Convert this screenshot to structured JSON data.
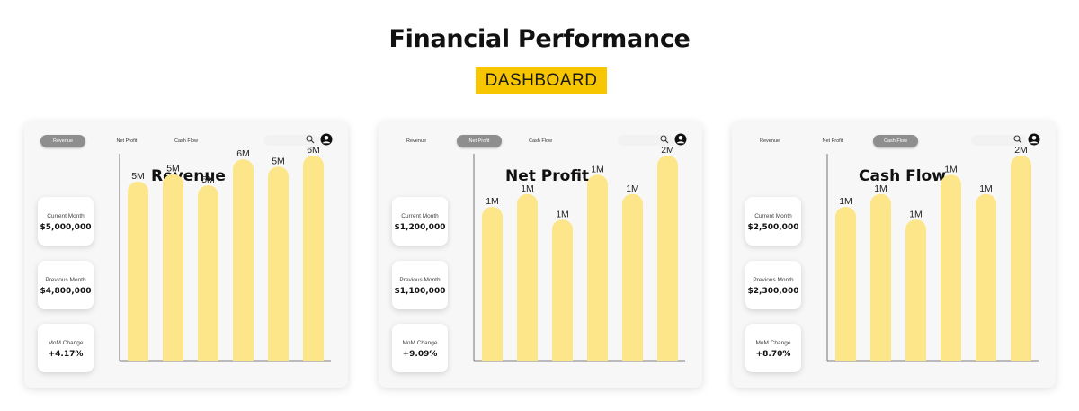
{
  "header": {
    "title": "Financial Performance",
    "subtitle": "DASHBOARD"
  },
  "colors": {
    "accent": "#f7c600",
    "bar": "#fde68a",
    "active_tab": "#8e8e8e"
  },
  "panels": [
    {
      "tabs": [
        "Revenue",
        "Net Profit",
        "Cash Flow"
      ],
      "active_tab": 0,
      "chart_title": "Revenue",
      "stats": [
        {
          "label": "Current Month",
          "value": "$5,000,000"
        },
        {
          "label": "Previous Month",
          "value": "$4,800,000"
        },
        {
          "label": "MoM Change",
          "value": "+4.17%"
        }
      ]
    },
    {
      "tabs": [
        "Revenue",
        "Net Profit",
        "Cash Flow"
      ],
      "active_tab": 1,
      "chart_title": "Net Profit",
      "stats": [
        {
          "label": "Current Month",
          "value": "$1,200,000"
        },
        {
          "label": "Previous Month",
          "value": "$1,100,000"
        },
        {
          "label": "MoM Change",
          "value": "+9.09%"
        }
      ]
    },
    {
      "tabs": [
        "Revenue",
        "Net Profit",
        "Cash Flow"
      ],
      "active_tab": 2,
      "chart_title": "Cash Flow",
      "stats": [
        {
          "label": "Current Month",
          "value": "$2,500,000"
        },
        {
          "label": "Previous Month",
          "value": "$2,300,000"
        },
        {
          "label": "MoM Change",
          "value": "+8.70%"
        }
      ]
    }
  ],
  "chart_data": [
    {
      "type": "bar",
      "title": "Revenue",
      "values": [
        4.8,
        5.0,
        4.7,
        5.4,
        5.2,
        5.5
      ],
      "labels": [
        "5M",
        "5M",
        "5M",
        "6M",
        "5M",
        "6M"
      ],
      "ylim": [
        0,
        5.5
      ],
      "grid": false
    },
    {
      "type": "bar",
      "title": "Net Profit",
      "values": [
        1.2,
        1.3,
        1.1,
        1.45,
        1.3,
        1.6
      ],
      "labels": [
        "1M",
        "1M",
        "1M",
        "1M",
        "1M",
        "2M"
      ],
      "ylim": [
        0,
        1.6
      ],
      "grid": false
    },
    {
      "type": "bar",
      "title": "Cash Flow",
      "values": [
        1.2,
        1.3,
        1.1,
        1.45,
        1.3,
        1.6
      ],
      "labels": [
        "1M",
        "1M",
        "1M",
        "1M",
        "1M",
        "2M"
      ],
      "ylim": [
        0,
        1.6
      ],
      "grid": false
    }
  ]
}
